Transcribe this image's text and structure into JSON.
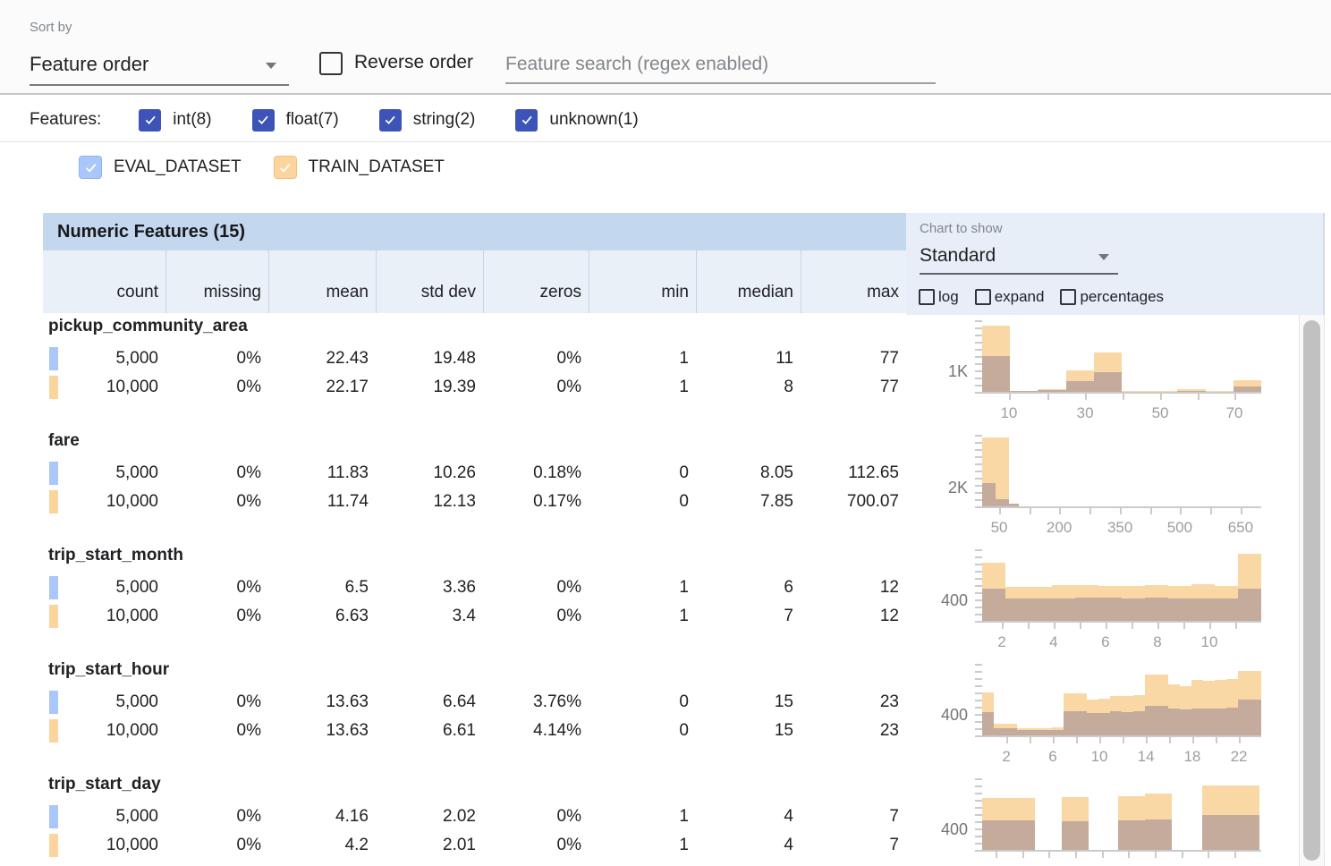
{
  "toolbar": {
    "sort_by_label": "Sort by",
    "sort_by_value": "Feature order",
    "reverse_order_label": "Reverse order",
    "search_placeholder": "Feature search (regex enabled)"
  },
  "features_filter": {
    "label": "Features:",
    "accent_color": "#3d53b7",
    "items": [
      {
        "label": "int(8)",
        "checked": true
      },
      {
        "label": "float(7)",
        "checked": true
      },
      {
        "label": "string(2)",
        "checked": true
      },
      {
        "label": "unknown(1)",
        "checked": true
      }
    ]
  },
  "datasets": [
    {
      "name": "EVAL_DATASET",
      "color": "#a9c7fa",
      "border": "#8fb3f3",
      "checked": true
    },
    {
      "name": "TRAIN_DATASET",
      "color": "#fcd49d",
      "border": "#f5bf77",
      "checked": true
    }
  ],
  "chart_controls": {
    "label": "Chart to show",
    "selected": "Standard",
    "toggles": [
      {
        "label": "log",
        "checked": false
      },
      {
        "label": "expand",
        "checked": false
      },
      {
        "label": "percentages",
        "checked": false
      }
    ]
  },
  "table": {
    "title": "Numeric Features (15)",
    "columns": [
      "count",
      "missing",
      "mean",
      "std dev",
      "zeros",
      "min",
      "median",
      "max"
    ],
    "rows": [
      {
        "feature": "pickup_community_area",
        "eval_row": [
          "5,000",
          "0%",
          "22.43",
          "19.48",
          "0%",
          "1",
          "11",
          "77"
        ],
        "train_row": [
          "10,000",
          "0%",
          "22.17",
          "19.39",
          "0%",
          "1",
          "8",
          "77"
        ]
      },
      {
        "feature": "fare",
        "eval_row": [
          "5,000",
          "0%",
          "11.83",
          "10.26",
          "0.18%",
          "0",
          "8.05",
          "112.65"
        ],
        "train_row": [
          "10,000",
          "0%",
          "11.74",
          "12.13",
          "0.17%",
          "0",
          "7.85",
          "700.07"
        ]
      },
      {
        "feature": "trip_start_month",
        "eval_row": [
          "5,000",
          "0%",
          "6.5",
          "3.36",
          "0%",
          "1",
          "6",
          "12"
        ],
        "train_row": [
          "10,000",
          "0%",
          "6.63",
          "3.4",
          "0%",
          "1",
          "7",
          "12"
        ]
      },
      {
        "feature": "trip_start_hour",
        "eval_row": [
          "5,000",
          "0%",
          "13.63",
          "6.64",
          "3.76%",
          "0",
          "15",
          "23"
        ],
        "train_row": [
          "10,000",
          "0%",
          "13.63",
          "6.61",
          "4.14%",
          "0",
          "15",
          "23"
        ]
      },
      {
        "feature": "trip_start_day",
        "eval_row": [
          "5,000",
          "0%",
          "4.16",
          "2.02",
          "0%",
          "1",
          "4",
          "7"
        ],
        "train_row": [
          "10,000",
          "0%",
          "4.2",
          "2.01",
          "0%",
          "1",
          "4",
          "7"
        ]
      }
    ]
  },
  "chart_style": {
    "train_bar_color": "#fad8a6",
    "overlap_bar_color": "#c4ab9b",
    "axis_color": "#cbcbcb",
    "tick_label_color": "#9e9e9e"
  },
  "chart_data": [
    {
      "feature": "pickup_community_area",
      "type": "bar",
      "series_note": "bars_format [f0,f1,train_count,eval_count]; f = fraction of x-axis width",
      "ylabel_text": "1K",
      "ylabel_value": 1000,
      "ymax": 3478,
      "xticks": [
        {
          "label": "10",
          "f": 0.096
        },
        {
          "label": "30",
          "f": 0.369
        },
        {
          "label": "50",
          "f": 0.638
        },
        {
          "label": "70",
          "f": 0.904
        }
      ],
      "minor_ticks_f": [
        0.096,
        0.2325,
        0.369,
        0.5035,
        0.638,
        0.771,
        0.904
      ],
      "show_xlabels": true,
      "bars": [
        [
          0.0,
          0.1,
          3200,
          1750
        ],
        [
          0.1,
          0.2,
          60,
          40
        ],
        [
          0.2,
          0.3,
          150,
          80
        ],
        [
          0.3,
          0.4,
          1050,
          500
        ],
        [
          0.4,
          0.5,
          1900,
          950
        ],
        [
          0.5,
          0.6,
          40,
          20
        ],
        [
          0.6,
          0.7,
          40,
          20
        ],
        [
          0.7,
          0.8,
          150,
          60
        ],
        [
          0.8,
          0.9,
          40,
          20
        ],
        [
          0.9,
          1.0,
          550,
          280
        ]
      ]
    },
    {
      "feature": "fare",
      "type": "bar",
      "ylabel_text": "2K",
      "ylabel_value": 2000,
      "ymax": 7619,
      "xticks": [
        {
          "label": "50",
          "f": 0.061
        },
        {
          "label": "200",
          "f": 0.276
        },
        {
          "label": "350",
          "f": 0.494
        },
        {
          "label": "500",
          "f": 0.708
        },
        {
          "label": "650",
          "f": 0.926
        }
      ],
      "minor_ticks_f": [
        0.061,
        0.1685,
        0.276,
        0.385,
        0.494,
        0.601,
        0.708,
        0.817,
        0.926
      ],
      "show_xlabels": true,
      "bars": [
        [
          0.0,
          0.048,
          7300,
          2500
        ],
        [
          0.048,
          0.096,
          7300,
          800
        ],
        [
          0.096,
          0.13,
          120,
          250
        ]
      ]
    },
    {
      "feature": "trip_start_month",
      "type": "bar",
      "ylabel_text": "400",
      "ylabel_value": 400,
      "ymax": 1391,
      "xticks": [
        {
          "label": "2",
          "f": 0.071
        },
        {
          "label": "4",
          "f": 0.256
        },
        {
          "label": "6",
          "f": 0.442
        },
        {
          "label": "8",
          "f": 0.628
        },
        {
          "label": "10",
          "f": 0.814
        }
      ],
      "minor_ticks_f": [
        0.071,
        0.1635,
        0.256,
        0.349,
        0.442,
        0.535,
        0.628,
        0.721,
        0.814,
        0.907
      ],
      "show_xlabels": true,
      "bars": [
        [
          0.0,
          0.083,
          1130,
          630
        ],
        [
          0.083,
          0.167,
          660,
          440
        ],
        [
          0.167,
          0.25,
          660,
          440
        ],
        [
          0.25,
          0.333,
          690,
          440
        ],
        [
          0.333,
          0.417,
          690,
          460
        ],
        [
          0.417,
          0.5,
          680,
          450
        ],
        [
          0.5,
          0.583,
          680,
          430
        ],
        [
          0.583,
          0.667,
          700,
          450
        ],
        [
          0.667,
          0.75,
          680,
          440
        ],
        [
          0.75,
          0.833,
          710,
          440
        ],
        [
          0.833,
          0.917,
          680,
          440
        ],
        [
          0.917,
          1.0,
          1300,
          630
        ]
      ]
    },
    {
      "feature": "trip_start_hour",
      "type": "bar",
      "ylabel_text": "400",
      "ylabel_value": 400,
      "ymax": 1391,
      "xticks": [
        {
          "label": "2",
          "f": 0.087
        },
        {
          "label": "6",
          "f": 0.253
        },
        {
          "label": "10",
          "f": 0.42
        },
        {
          "label": "14",
          "f": 0.587
        },
        {
          "label": "18",
          "f": 0.753
        },
        {
          "label": "22",
          "f": 0.92
        }
      ],
      "minor_ticks_f": [
        0.087,
        0.17,
        0.253,
        0.337,
        0.42,
        0.503,
        0.587,
        0.67,
        0.753,
        0.837,
        0.92
      ],
      "show_xlabels": true,
      "bars": [
        [
          0.0,
          0.0417,
          840,
          450
        ],
        [
          0.0417,
          0.0833,
          220,
          140
        ],
        [
          0.0833,
          0.125,
          220,
          140
        ],
        [
          0.125,
          0.1667,
          140,
          100
        ],
        [
          0.1667,
          0.2083,
          140,
          100
        ],
        [
          0.2083,
          0.25,
          140,
          100
        ],
        [
          0.25,
          0.2917,
          150,
          110
        ],
        [
          0.2917,
          0.3333,
          820,
          470
        ],
        [
          0.3333,
          0.375,
          820,
          470
        ],
        [
          0.375,
          0.4167,
          700,
          430
        ],
        [
          0.4167,
          0.4583,
          720,
          440
        ],
        [
          0.4583,
          0.5,
          760,
          470
        ],
        [
          0.5,
          0.5417,
          760,
          460
        ],
        [
          0.5417,
          0.5833,
          780,
          470
        ],
        [
          0.5833,
          0.625,
          1180,
          570
        ],
        [
          0.625,
          0.6667,
          1180,
          580
        ],
        [
          0.6667,
          0.7083,
          990,
          520
        ],
        [
          0.7083,
          0.75,
          960,
          510
        ],
        [
          0.75,
          0.7917,
          1080,
          520
        ],
        [
          0.7917,
          0.8333,
          1060,
          520
        ],
        [
          0.8333,
          0.875,
          1080,
          530
        ],
        [
          0.875,
          0.9167,
          1100,
          540
        ],
        [
          0.9167,
          0.9583,
          1250,
          700
        ],
        [
          0.9583,
          1.0,
          1250,
          700
        ]
      ]
    },
    {
      "feature": "trip_start_day",
      "type": "bar",
      "ylabel_text": "400",
      "ylabel_value": 400,
      "ymax": 1391,
      "xticks": [],
      "minor_ticks_f": [
        0.048,
        0.143,
        0.238,
        0.333,
        0.428,
        0.524,
        0.619,
        0.714,
        0.809,
        0.905
      ],
      "show_xlabels": false,
      "bars": [
        [
          0.0,
          0.095,
          1010,
          575
        ],
        [
          0.095,
          0.19,
          1010,
          570
        ],
        [
          0.285,
          0.38,
          1030,
          560
        ],
        [
          0.487,
          0.583,
          1035,
          570
        ],
        [
          0.583,
          0.678,
          1090,
          595
        ],
        [
          0.79,
          0.895,
          1250,
          680
        ],
        [
          0.895,
          0.995,
          1245,
          670
        ]
      ]
    }
  ]
}
